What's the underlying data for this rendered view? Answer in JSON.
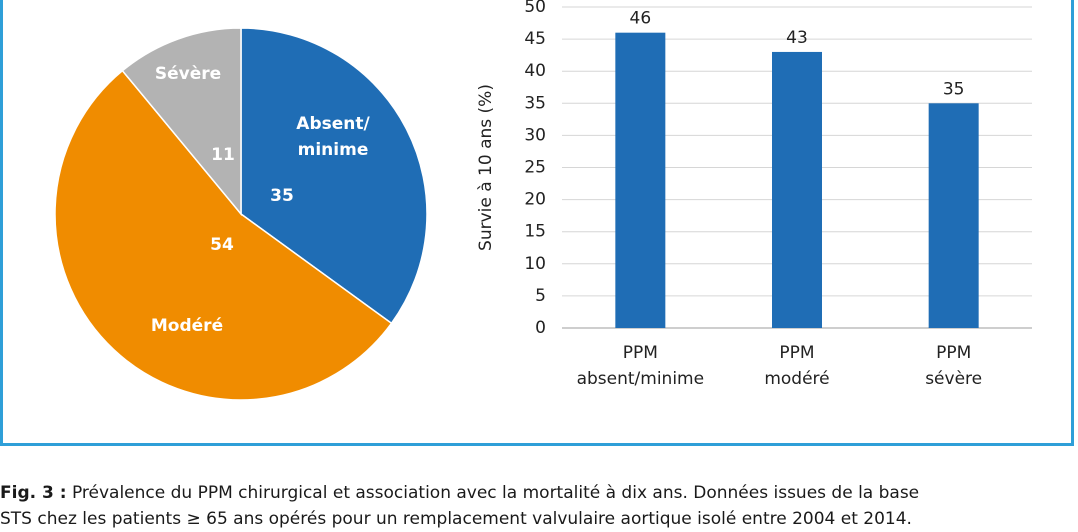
{
  "caption": {
    "label": "Fig. 3 :",
    "line1": "Prévalence du PPM chirurgical et association avec la mortalité à dix ans. Données issues de la base",
    "line2": "STS chez les patients ≥ 65 ans opérés pour un remplacement valvulaire aortique isolé entre 2004 et 2014."
  },
  "colors": {
    "frame": "#2f9fd8"
  },
  "chart_data": [
    {
      "type": "pie",
      "slices": [
        {
          "label": "Absent/\nminime",
          "value": 35,
          "color": "#1f6db5"
        },
        {
          "label": "Modéré",
          "value": 54,
          "color": "#f08c00"
        },
        {
          "label": "Sévère",
          "value": 11,
          "color": "#b3b3b3"
        }
      ]
    },
    {
      "type": "bar",
      "categories": [
        "PPM\nabsent/minime",
        "PPM\nmodéré",
        "PPM\nsévère"
      ],
      "values": [
        46,
        43,
        35
      ],
      "ylabel": "Survie à 10 ans (%)",
      "ylim": [
        0,
        50
      ],
      "yticks": [
        0,
        5,
        10,
        15,
        20,
        25,
        30,
        35,
        40,
        45,
        50
      ],
      "grid": true,
      "bar_color": "#1f6db5"
    }
  ]
}
